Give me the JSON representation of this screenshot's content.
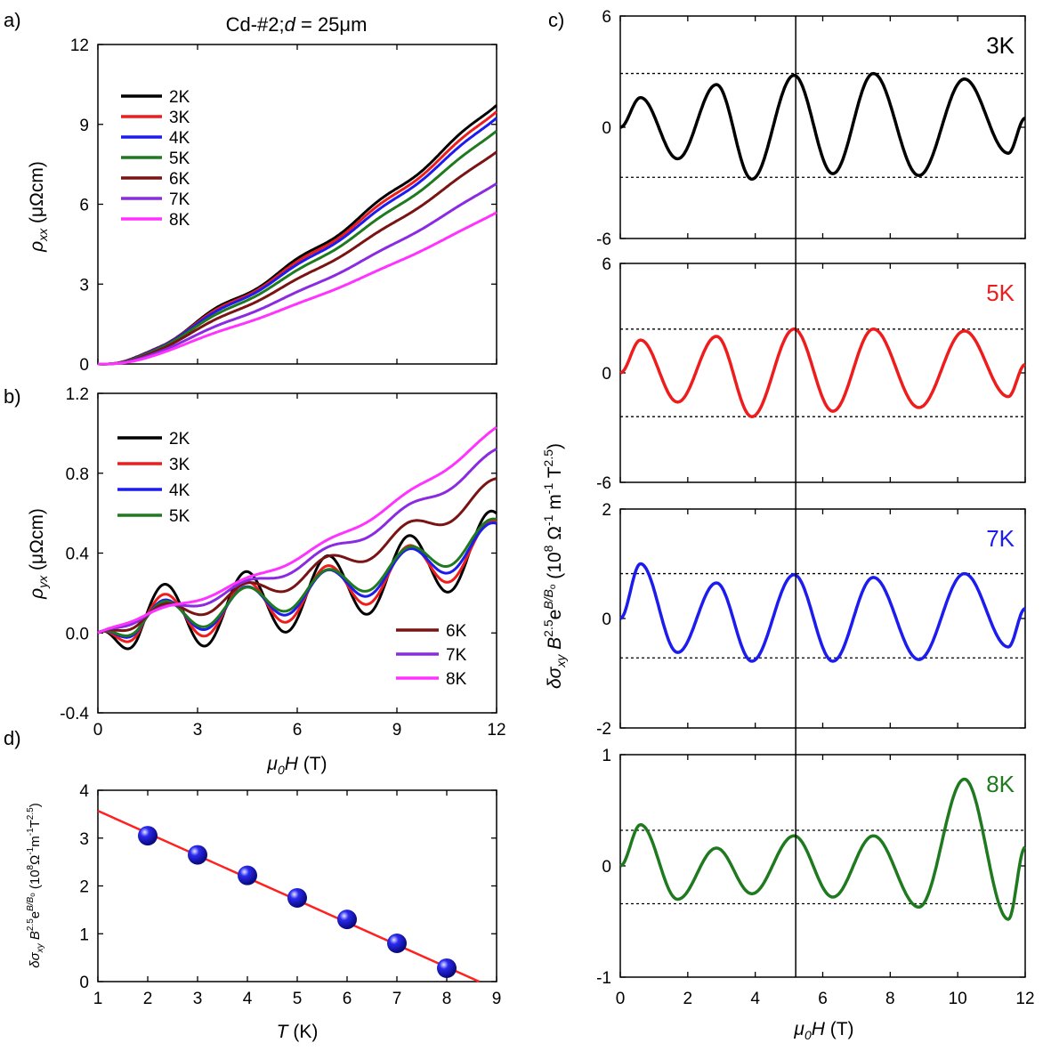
{
  "figure_title": "Cd-#2;  d = 25μm",
  "title_parts": {
    "sample": "Cd-#2;",
    "d_symbol": "d",
    "d_value": " = 25μm"
  },
  "colors": {
    "2K": "#000000",
    "3K": "#ee1c1c",
    "4K": "#1c1cee",
    "5K": "#1f7a1f",
    "6K": "#7a1414",
    "7K": "#8a2be2",
    "8K": "#ff33ff",
    "fit": "#ff2020",
    "point": "#2a2af0"
  },
  "chart_data": [
    {
      "panel": "a)",
      "type": "line",
      "title": "Cd-#2;  d = 25μm",
      "xlabel": "μ0H (T)",
      "ylabel": "ρxx (μΩcm)",
      "xlim": [
        0,
        12
      ],
      "ylim": [
        0,
        12
      ],
      "xticks": [
        "0",
        "3",
        "6",
        "9",
        "12"
      ],
      "yticks": [
        "0",
        "3",
        "6",
        "9",
        "12"
      ],
      "legend": [
        "2K",
        "3K",
        "4K",
        "5K",
        "6K",
        "7K",
        "8K"
      ],
      "series": [
        {
          "name": "2K",
          "end_value": 9.8
        },
        {
          "name": "3K",
          "end_value": 9.55
        },
        {
          "name": "4K",
          "end_value": 9.3
        },
        {
          "name": "5K",
          "end_value": 8.8
        },
        {
          "name": "6K",
          "end_value": 8.0
        },
        {
          "name": "7K",
          "end_value": 6.8
        },
        {
          "name": "8K",
          "end_value": 5.7
        }
      ]
    },
    {
      "panel": "b)",
      "type": "line",
      "xlabel": "μ0H (T)",
      "ylabel": "ρyx (μΩcm)",
      "xlim": [
        0,
        12
      ],
      "ylim": [
        -0.4,
        1.2
      ],
      "xticks": [
        "0",
        "3",
        "6",
        "9",
        "12"
      ],
      "yticks": [
        "-0.4",
        "0.0",
        "0.4",
        "0.8",
        "1.2"
      ],
      "legend_top": [
        "2K",
        "3K",
        "4K",
        "5K"
      ],
      "legend_bottom": [
        "6K",
        "7K",
        "8K"
      ],
      "series": [
        {
          "name": "2K",
          "trend_end": 0.4,
          "osc_amp": 0.17
        },
        {
          "name": "3K",
          "trend_end": 0.4,
          "osc_amp": 0.12
        },
        {
          "name": "4K",
          "trend_end": 0.42,
          "osc_amp": 0.09
        },
        {
          "name": "5K",
          "trend_end": 0.45,
          "osc_amp": 0.08
        },
        {
          "name": "6K",
          "trend_end": 0.68,
          "osc_amp": 0.05
        },
        {
          "name": "7K",
          "trend_end": 0.85,
          "osc_amp": 0.025
        },
        {
          "name": "8K",
          "trend_end": 0.97,
          "osc_amp": 0.012
        }
      ]
    },
    {
      "panel": "c)",
      "type": "line",
      "xlabel": "μ0H (T)",
      "ylabel": "δσxy B^2.5 e^(B/B0) (10^8 Ω^-1 m^-1 T^2.5)",
      "xlim": [
        0,
        12
      ],
      "xticks": [
        "0",
        "2",
        "4",
        "6",
        "8",
        "10",
        "12"
      ],
      "vertical_line_x": 5.2,
      "subplots": [
        {
          "label": "3K",
          "ylim": [
            -6,
            6
          ],
          "yticks": [
            "-6",
            "0",
            "6"
          ],
          "dashed": [
            2.9,
            -2.7
          ],
          "peaks": [
            1.6,
            -1.7,
            2.3,
            -2.8,
            2.8,
            -2.5,
            2.9,
            -2.6,
            2.6,
            -1.4
          ]
        },
        {
          "label": "5K",
          "ylim": [
            -6,
            6
          ],
          "yticks": [
            "-6",
            "0",
            "6"
          ],
          "dashed": [
            2.4,
            -2.4
          ],
          "peaks": [
            1.8,
            -1.6,
            2.0,
            -2.4,
            2.4,
            -2.1,
            2.4,
            -1.9,
            2.3,
            -1.3
          ]
        },
        {
          "label": "7K",
          "ylim": [
            -2,
            2
          ],
          "yticks": [
            "-2",
            "0",
            "2"
          ],
          "dashed": [
            0.82,
            -0.72
          ],
          "peaks": [
            1.0,
            -0.62,
            0.65,
            -0.78,
            0.8,
            -0.78,
            0.75,
            -0.75,
            0.82,
            -0.52
          ]
        },
        {
          "label": "8K",
          "ylim": [
            -1,
            1
          ],
          "yticks": [
            "-1",
            "0",
            "1"
          ],
          "dashed": [
            0.32,
            -0.34
          ],
          "peaks": [
            0.37,
            -0.3,
            0.16,
            -0.25,
            0.27,
            -0.28,
            0.27,
            -0.37,
            0.78,
            -0.48
          ]
        }
      ]
    },
    {
      "panel": "d)",
      "type": "scatter",
      "xlabel": "T (K)",
      "ylabel": "δσxy B^2.5 e^(B/B0) (10^8 Ω^-1 m^-1 T^2.5)",
      "xlim": [
        1,
        9
      ],
      "ylim": [
        0,
        4
      ],
      "xticks": [
        "1",
        "2",
        "3",
        "4",
        "5",
        "6",
        "7",
        "8",
        "9"
      ],
      "yticks": [
        "0",
        "1",
        "2",
        "3",
        "4"
      ],
      "points": [
        {
          "x": 2,
          "y": 3.05
        },
        {
          "x": 3,
          "y": 2.65
        },
        {
          "x": 4,
          "y": 2.22
        },
        {
          "x": 5,
          "y": 1.75
        },
        {
          "x": 6,
          "y": 1.3
        },
        {
          "x": 7,
          "y": 0.8
        },
        {
          "x": 8,
          "y": 0.28
        }
      ],
      "fit_line": {
        "x": [
          1,
          8.65
        ],
        "y": [
          3.57,
          0
        ]
      }
    }
  ]
}
